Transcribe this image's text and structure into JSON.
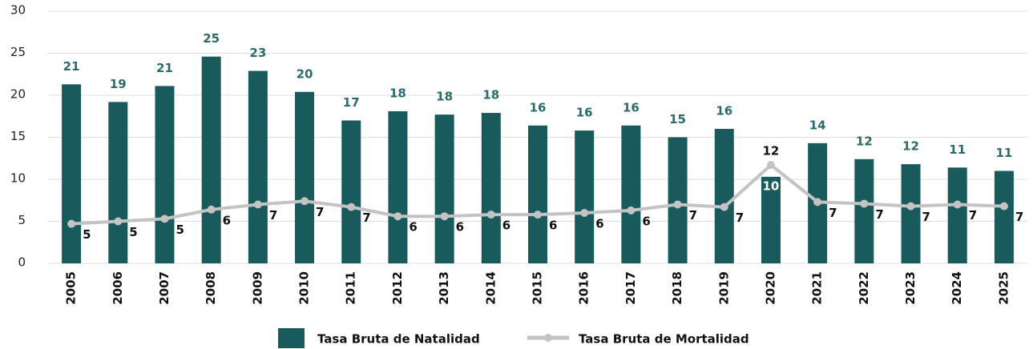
{
  "chart_data": {
    "type": "bar",
    "categories": [
      "2005",
      "2006",
      "2007",
      "2008",
      "2009",
      "2010",
      "2011",
      "2012",
      "2013",
      "2014",
      "2015",
      "2016",
      "2017",
      "2018",
      "2019",
      "2020",
      "2021",
      "2022",
      "2023",
      "2024",
      "2025"
    ],
    "series": [
      {
        "name": "Tasa Bruta de Natalidad",
        "type": "bar",
        "color": "#195a5c",
        "values": [
          21.3,
          19.2,
          21.1,
          24.6,
          22.9,
          20.4,
          17.0,
          18.1,
          17.7,
          17.9,
          16.4,
          15.8,
          16.4,
          15.0,
          16.0,
          10.3,
          14.3,
          12.4,
          11.8,
          11.4,
          11.0
        ],
        "value_labels": [
          "21",
          "19",
          "21",
          "25",
          "23",
          "20",
          "17",
          "18",
          "18",
          "18",
          "16",
          "16",
          "16",
          "15",
          "16",
          "10",
          "14",
          "12",
          "12",
          "11",
          "11"
        ]
      },
      {
        "name": "Tasa Bruta de Mortalidad",
        "type": "line",
        "color": "#c3c3c3",
        "values": [
          4.7,
          5.0,
          5.3,
          6.4,
          7.0,
          7.4,
          6.7,
          5.6,
          5.6,
          5.8,
          5.8,
          6.0,
          6.3,
          7.0,
          6.7,
          11.7,
          7.3,
          7.1,
          6.8,
          7.0,
          6.8
        ],
        "value_labels": [
          "5",
          "5",
          "5",
          "6",
          "7",
          "7",
          "7",
          "6",
          "6",
          "6",
          "6",
          "6",
          "6",
          "7",
          "7",
          "12",
          "7",
          "7",
          "7",
          "7",
          "7"
        ]
      }
    ],
    "ylim": [
      0,
      30
    ],
    "yticks": [
      0,
      5,
      10,
      15,
      20,
      25,
      30
    ],
    "grid": true,
    "legend": "bottom"
  }
}
